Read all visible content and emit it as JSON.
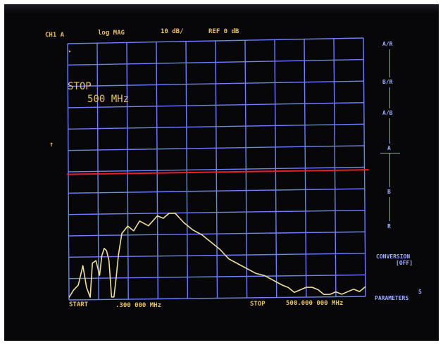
{
  "header": {
    "channel": "CH1 A",
    "format": "log MAG",
    "scale": "10 dB/",
    "reference": "REF 0 dB"
  },
  "marker_label": "▸",
  "ref_arrow": "↑",
  "stop_annotation": {
    "label": "STOP",
    "value": "500 MHz"
  },
  "footer": {
    "start_label": "START",
    "start_value": ".300 000 MHz",
    "stop_label": "STOP",
    "stop_value": "500.000 000 MHz"
  },
  "softkeys": {
    "a_r": "A/R",
    "b_r": "B/R",
    "a_b": "A/B",
    "a": "A",
    "b": "B",
    "r": "R",
    "conversion_line1": "CONVERSION",
    "conversion_line2": "[OFF]",
    "parameters_line1": "S",
    "parameters_line2": "PARAMETERS"
  },
  "colors": {
    "grid": "#6d82ff",
    "trace": "#f0df9a",
    "reference_line": "#e4202a",
    "annotation": "#e8c060",
    "softkey": "#9fb0ff"
  },
  "chart_data": {
    "type": "line",
    "xlabel": "",
    "ylabel": "",
    "xlim": [
      0.3,
      500
    ],
    "ylim": [
      -100,
      0
    ],
    "reference_level_db": 0,
    "x": [
      0.3,
      8,
      16,
      24,
      30,
      36,
      40,
      46,
      52,
      56,
      60,
      64,
      68,
      72,
      76,
      80,
      84,
      90,
      100,
      110,
      120,
      135,
      150,
      160,
      170,
      180,
      195,
      210,
      225,
      240,
      255,
      270,
      285,
      300,
      315,
      330,
      345,
      360,
      370,
      380,
      390,
      400,
      410,
      420,
      430,
      440,
      450,
      460,
      470,
      480,
      490,
      500
    ],
    "series": [
      {
        "values": [
          -99,
          -96,
          -94,
          -86,
          -95,
          -99,
          -85,
          -84,
          -90,
          -82,
          -79,
          -80,
          -84,
          -99,
          -99,
          -91,
          -82,
          -73,
          -70,
          -72,
          -68,
          -70,
          -66,
          -67,
          -65,
          -65,
          -69,
          -72,
          -74,
          -77,
          -80,
          -84,
          -86,
          -88,
          -90,
          -91,
          -93,
          -95,
          -96,
          -98,
          -97,
          -96,
          -96,
          -97,
          -99,
          -99,
          -98,
          -99,
          -98,
          -97,
          -98,
          -96
        ]
      }
    ]
  }
}
